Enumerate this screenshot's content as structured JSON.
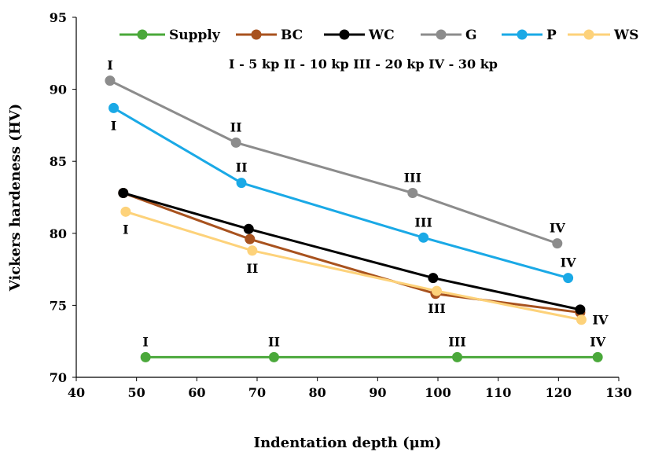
{
  "chart_data": {
    "type": "line",
    "xlabel": "Indentation depth (μm)",
    "ylabel": "Vickers hardeness (HV)",
    "xlim": [
      40,
      130
    ],
    "ylim": [
      70,
      95
    ],
    "x_ticks": [
      "40",
      "50",
      "60",
      "70",
      "80",
      "90",
      "100",
      "110",
      "120",
      "130"
    ],
    "y_ticks": [
      "70",
      "75",
      "80",
      "85",
      "90",
      "95"
    ],
    "grid": false,
    "legend_position": "top",
    "load_note": "I - 5 kp II - 10 kp III - 20 kp IV - 30 kp",
    "series": [
      {
        "name": "Supply",
        "color": "#4aa83a",
        "x": [
          51.5,
          72.8,
          103.2,
          126.5
        ],
        "y": [
          71.4,
          71.4,
          71.4,
          71.4
        ],
        "point_labels": [
          "I",
          "II",
          "III",
          "IV"
        ],
        "label_side": [
          "above",
          "above",
          "above",
          "above"
        ]
      },
      {
        "name": "BC",
        "color": "#a8521e",
        "x": [
          47.8,
          68.8,
          99.6,
          123.6
        ],
        "y": [
          82.8,
          79.6,
          75.8,
          74.5
        ],
        "point_labels": [],
        "label_side": []
      },
      {
        "name": "WC",
        "color": "#000000",
        "x": [
          47.8,
          68.6,
          99.2,
          123.6
        ],
        "y": [
          82.8,
          80.3,
          76.9,
          74.7
        ],
        "point_labels": [],
        "label_side": []
      },
      {
        "name": "G",
        "color": "#8c8c8c",
        "x": [
          45.6,
          66.5,
          95.8,
          119.8
        ],
        "y": [
          90.6,
          86.3,
          82.8,
          79.3
        ],
        "point_labels": [
          "I",
          "II",
          "III",
          "IV"
        ],
        "label_side": [
          "above",
          "above",
          "above",
          "above"
        ]
      },
      {
        "name": "P",
        "color": "#1aa9e6",
        "x": [
          46.2,
          67.4,
          97.6,
          121.6
        ],
        "y": [
          88.7,
          83.5,
          79.7,
          76.9
        ],
        "point_labels": [
          "I",
          "II",
          "III",
          "IV"
        ],
        "label_side": [
          "below",
          "above",
          "above",
          "above"
        ]
      },
      {
        "name": "WS",
        "color": "#fdd27a",
        "x": [
          48.2,
          69.2,
          99.8,
          123.8
        ],
        "y": [
          81.5,
          78.8,
          76.0,
          74.0
        ],
        "point_labels": [
          "I",
          "II",
          "III",
          "IV"
        ],
        "label_side": [
          "below",
          "below",
          "below",
          "right"
        ]
      }
    ]
  }
}
